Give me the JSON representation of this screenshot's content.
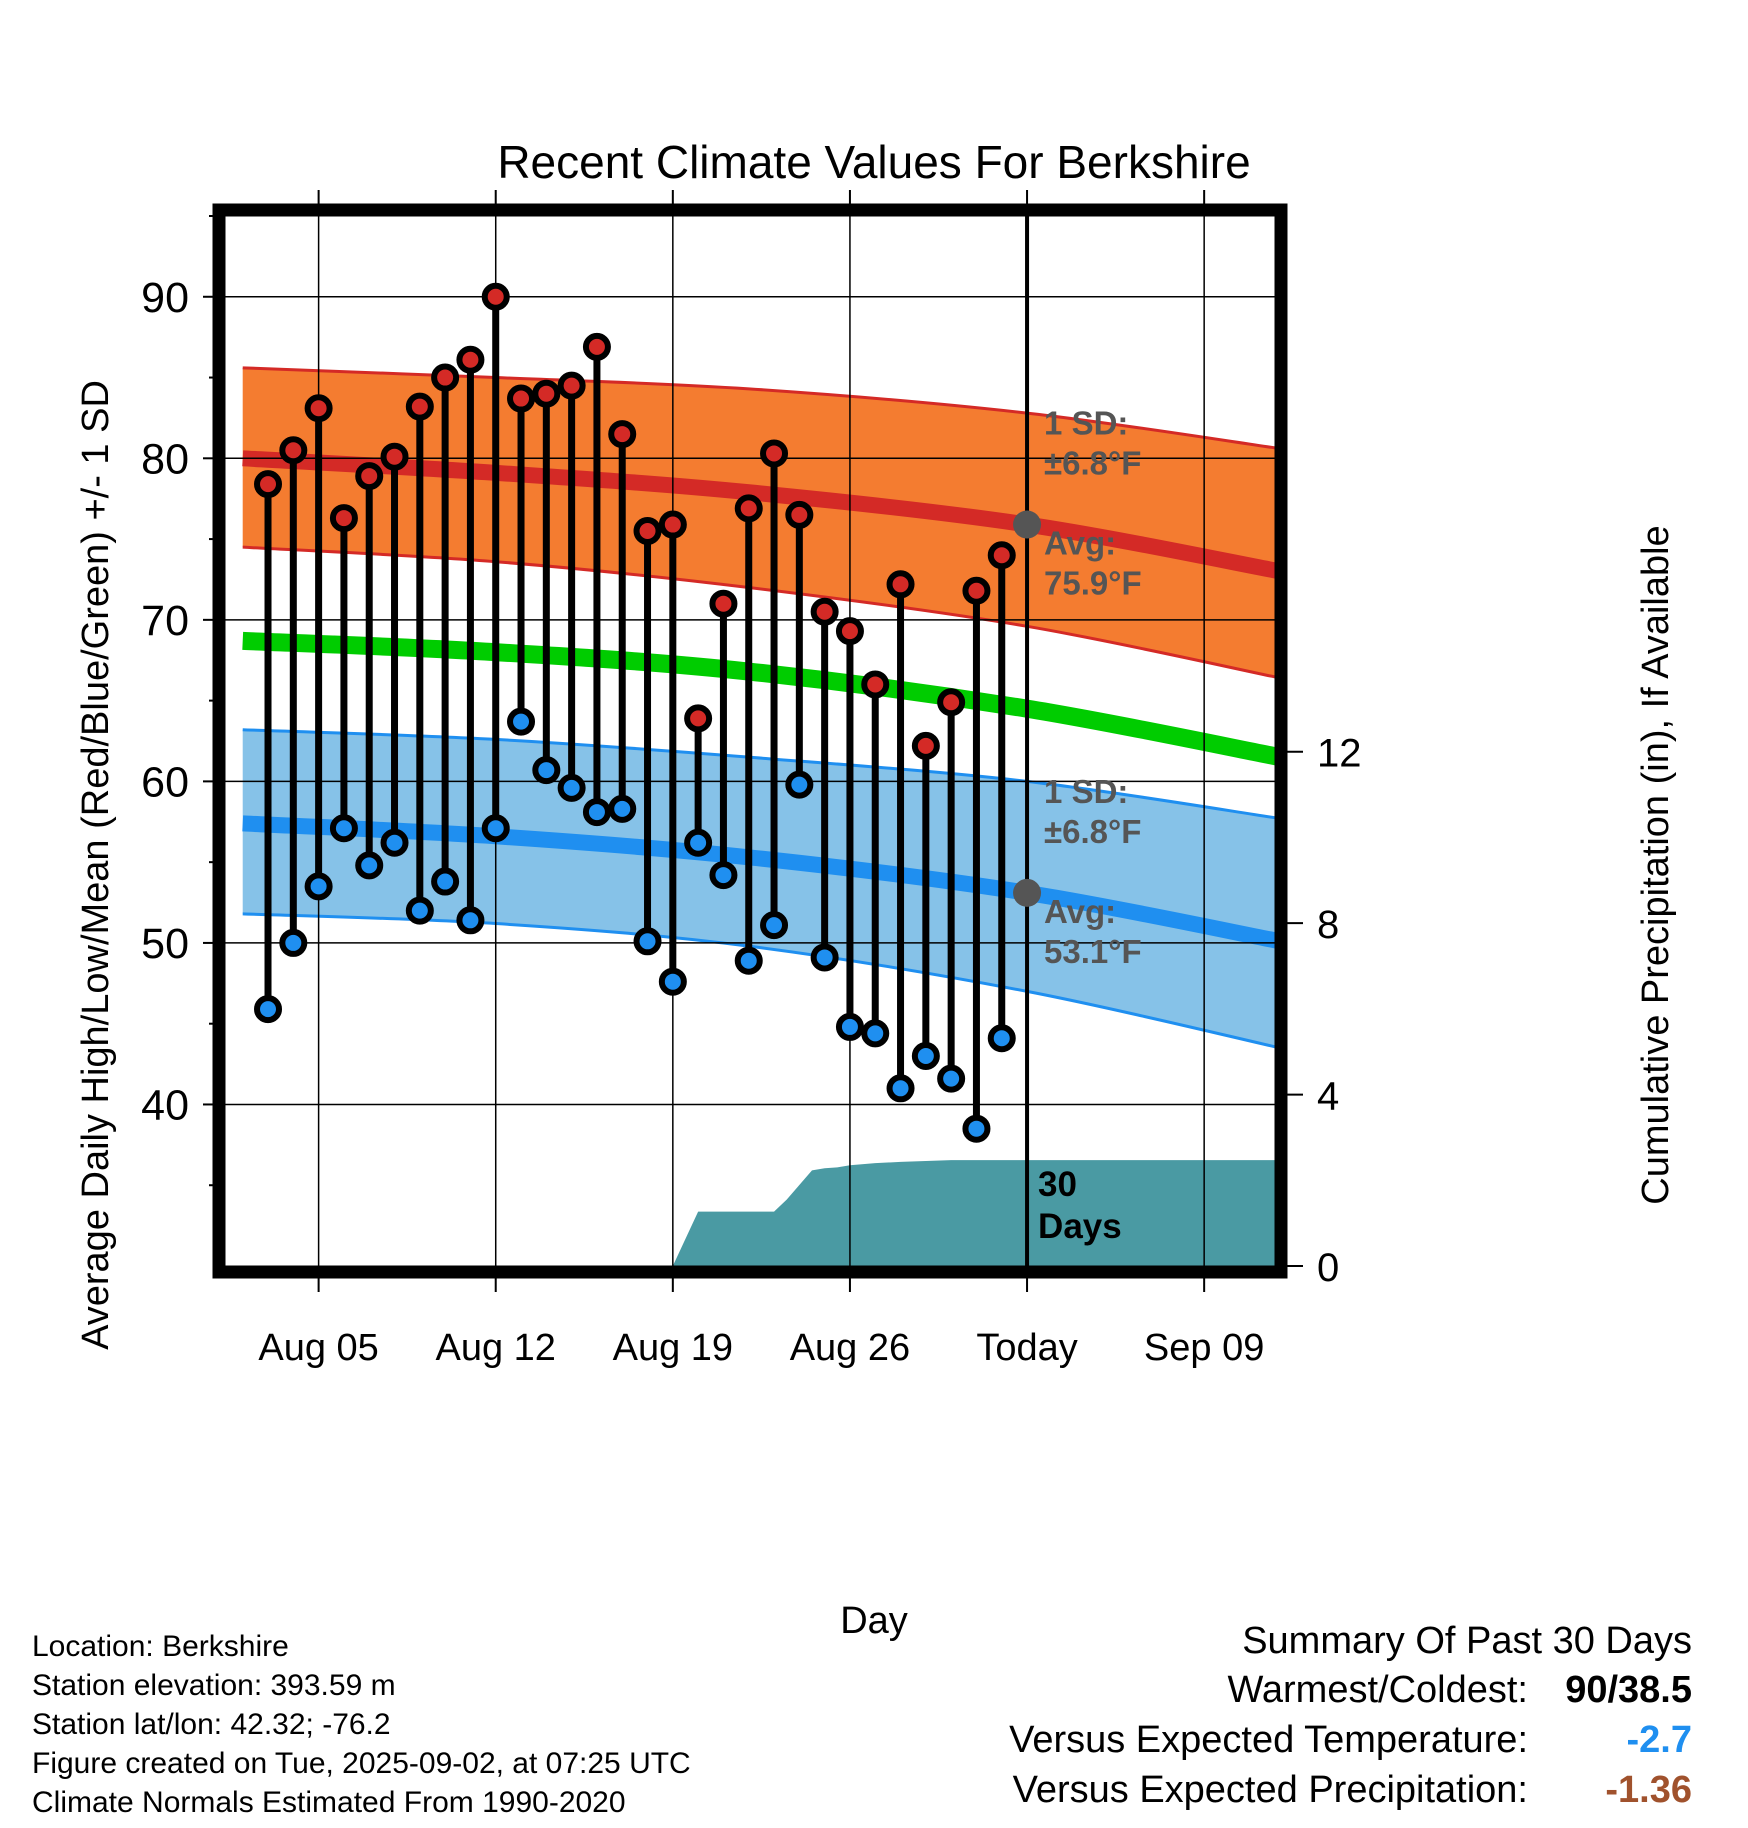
{
  "chart_data": {
    "type": "line",
    "title": "Recent Climate Values For Berkshire",
    "xlabel": "Day",
    "ylabel": "Average Daily High/Low/Mean (Red/Blue/Green) +/- 1 SD",
    "y2label": "Cumulative Precipitation (in), If Available",
    "x_tick_labels": [
      "Aug 05",
      "Aug 12",
      "Aug 19",
      "Aug 26",
      "Today",
      "Sep 09"
    ],
    "x_tick_days": [
      5,
      12,
      19,
      26,
      33,
      40
    ],
    "xlim": [
      1.3,
      42.8
    ],
    "ylim": [
      30,
      95
    ],
    "y_ticks": [
      40,
      50,
      60,
      70,
      80,
      90
    ],
    "y2lim": [
      0,
      24.5
    ],
    "y2_ticks": [
      0,
      4,
      8,
      12
    ],
    "today_day": 33,
    "grid": true,
    "colors": {
      "high_band": "#f47c30",
      "high_avg": "#d42a26",
      "low_band": "#86c2e8",
      "low_avg": "#1f8ff0",
      "mean_avg": "#00cc00",
      "precip": "#4a9aa3",
      "high_dot": "#d42a26",
      "low_dot": "#1f8ff0",
      "avg_marker": "#555555",
      "annotation": "#555555"
    },
    "normals": {
      "days": [
        2,
        12,
        22,
        33,
        43
      ],
      "high_avg": [
        80.0,
        79.1,
        77.9,
        75.9,
        73.0
      ],
      "high_upper": [
        85.6,
        85.0,
        84.3,
        82.8,
        80.6
      ],
      "high_lower": [
        74.5,
        73.6,
        72.0,
        69.6,
        66.4
      ],
      "low_avg": [
        57.4,
        56.6,
        55.3,
        53.1,
        50.1
      ],
      "low_upper": [
        63.2,
        62.6,
        61.5,
        60.0,
        57.7
      ],
      "low_lower": [
        51.8,
        51.2,
        49.8,
        47.0,
        43.5
      ],
      "mean_avg": [
        68.7,
        68.0,
        66.8,
        64.5,
        61.5
      ]
    },
    "series": [
      {
        "name": "High",
        "days": [
          3,
          4,
          5,
          6,
          7,
          8,
          9,
          10,
          11,
          12,
          13,
          14,
          15,
          16,
          17,
          18,
          19,
          20,
          21,
          22,
          23,
          24,
          25,
          26,
          27,
          28,
          29,
          30,
          31,
          32
        ],
        "values": [
          78.4,
          80.5,
          83.1,
          76.3,
          78.9,
          80.1,
          83.2,
          85.0,
          86.1,
          90.0,
          83.7,
          84.0,
          84.5,
          86.9,
          81.5,
          75.5,
          75.9,
          63.9,
          71.0,
          76.9,
          80.3,
          76.5,
          70.5,
          69.3,
          66.0,
          72.2,
          62.2,
          64.9,
          71.8,
          74.0
        ]
      },
      {
        "name": "Low",
        "days": [
          3,
          4,
          5,
          6,
          7,
          8,
          9,
          10,
          11,
          12,
          13,
          14,
          15,
          16,
          17,
          18,
          19,
          20,
          21,
          22,
          23,
          24,
          25,
          26,
          27,
          28,
          29,
          30,
          31,
          32
        ],
        "values": [
          45.9,
          50.0,
          53.5,
          57.1,
          54.8,
          56.2,
          52.0,
          53.8,
          51.4,
          57.1,
          63.7,
          60.7,
          59.6,
          58.1,
          58.3,
          50.1,
          47.6,
          56.2,
          54.2,
          48.9,
          51.1,
          59.8,
          49.1,
          44.8,
          44.4,
          41.0,
          43.0,
          41.6,
          38.5,
          44.1
        ]
      },
      {
        "name": "Cumulative Precipitation",
        "days": [
          19,
          20,
          21,
          22,
          23,
          23.5,
          24,
          24.5,
          25,
          25.5,
          26,
          27,
          28,
          29,
          30,
          31,
          32,
          33,
          42.8
        ],
        "values": [
          0.0,
          1.27,
          1.27,
          1.27,
          1.27,
          1.55,
          1.89,
          2.23,
          2.28,
          2.3,
          2.35,
          2.4,
          2.43,
          2.45,
          2.47,
          2.47,
          2.47,
          2.47,
          2.47
        ]
      }
    ],
    "annotations": {
      "high_sd_label": "1 SD:",
      "high_sd_value": "±6.8°F",
      "high_avg_label": "Avg:",
      "high_avg_value": "75.9°F",
      "low_sd_label": "1 SD:",
      "low_sd_value": "±6.8°F",
      "low_avg_label": "Avg:",
      "low_avg_value": "53.1°F",
      "days_count": "30",
      "days_label": "Days"
    }
  },
  "footer": {
    "location": "Location: Berkshire",
    "elevation": "Station elevation: 393.59 m",
    "latlon": "Station lat/lon: 42.32; -76.2",
    "created": "Figure created on Tue, 2025-09-02, at 07:25 UTC",
    "normals": "Climate Normals Estimated From 1990-2020"
  },
  "summary": {
    "title": "Summary Of Past 30 Days",
    "warmest_label": "Warmest/Coldest:",
    "warmest_value": "90/38.5",
    "temp_label": "Versus Expected Temperature:",
    "temp_value": "-2.7",
    "temp_color": "#1f8ff0",
    "precip_label": "Versus Expected Precipitation:",
    "precip_value": "-1.36",
    "precip_color": "#a0522d"
  }
}
